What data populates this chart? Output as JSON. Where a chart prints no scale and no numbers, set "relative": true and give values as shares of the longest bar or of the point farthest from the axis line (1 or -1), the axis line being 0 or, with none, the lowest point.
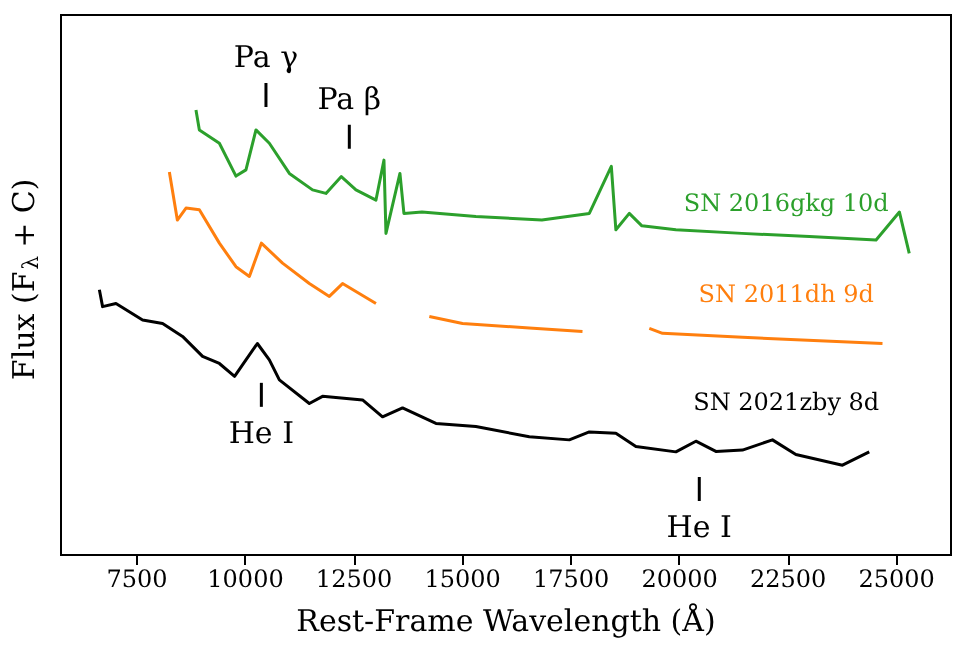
{
  "chart_data": {
    "type": "line",
    "relative": true,
    "xlabel": "Rest-Frame Wavelength (Å)",
    "ylabel": "Flux (F$_{λ}$ + C)",
    "xlim": [
      5750,
      26250
    ],
    "xticks": [
      7500,
      10000,
      12500,
      15000,
      17500,
      20000,
      22500,
      25000
    ],
    "grid": false,
    "legend": false,
    "marker": "none",
    "line_style": "solid",
    "series": [
      {
        "name": "SN 2016gkg 10d",
        "color": "#2ca02c",
        "x": [
          8882,
          8960,
          9421,
          9803,
          10033,
          10264,
          10572,
          11033,
          11567,
          11876,
          12230,
          12567,
          13028,
          13212,
          13258,
          13580,
          13672,
          14087,
          15330,
          16850,
          17942,
          18449,
          18554,
          18863,
          19153,
          19936,
          21456,
          23009,
          24547,
          25085,
          25311
        ],
        "values": [
          1.0,
          0.955,
          0.925,
          0.851,
          0.865,
          0.955,
          0.925,
          0.857,
          0.82,
          0.812,
          0.85,
          0.82,
          0.797,
          0.887,
          0.722,
          0.857,
          0.767,
          0.77,
          0.76,
          0.752,
          0.767,
          0.873,
          0.73,
          0.767,
          0.739,
          0.73,
          0.722,
          0.715,
          0.707,
          0.77,
          0.677
        ]
      },
      {
        "name": "SN 2011dh 9d",
        "color": "#ff7f0e",
        "x": [
          8269,
          8453,
          8652,
          8960,
          9421,
          9803,
          10112,
          10388,
          10876,
          11493,
          11954,
          12258,
          13028,
          13600,
          14257,
          15022,
          16560,
          17785,
          18500,
          19324,
          19628,
          21470,
          24695
        ],
        "values": [
          0.86,
          0.752,
          0.779,
          0.775,
          0.7,
          0.647,
          0.625,
          0.7,
          0.655,
          0.609,
          0.58,
          0.609,
          0.564,
          null,
          0.535,
          0.519,
          0.509,
          0.501,
          null,
          0.508,
          0.497,
          0.488,
          0.474
        ]
      },
      {
        "name": "SN 2021zby 8d",
        "color": "#000000",
        "x": [
          6657,
          6731,
          7039,
          7652,
          8113,
          8573,
          9034,
          9421,
          9771,
          10033,
          10296,
          10572,
          10803,
          11493,
          11797,
          12719,
          13179,
          13640,
          14409,
          15330,
          16560,
          17481,
          17942,
          18554,
          19015,
          19936,
          20397,
          20857,
          21470,
          22161,
          22700,
          23773,
          24390
        ],
        "values": [
          0.595,
          0.557,
          0.564,
          0.527,
          0.519,
          0.49,
          0.445,
          0.429,
          0.4,
          0.437,
          0.474,
          0.437,
          0.392,
          0.339,
          0.355,
          0.347,
          0.309,
          0.329,
          0.294,
          0.287,
          0.264,
          0.257,
          0.275,
          0.272,
          0.242,
          0.23,
          0.254,
          0.231,
          0.234,
          0.257,
          0.224,
          0.2,
          0.23
        ]
      }
    ],
    "annotations": [
      {
        "text": "Pa γ",
        "x": 10494,
        "y": 0.93
      },
      {
        "text": "Pa β",
        "x": 12414,
        "y": 0.836
      },
      {
        "text": "He I",
        "x": 10388,
        "y": 0.462
      },
      {
        "text": "He I",
        "x": 20475,
        "y": 0.25
      }
    ]
  }
}
